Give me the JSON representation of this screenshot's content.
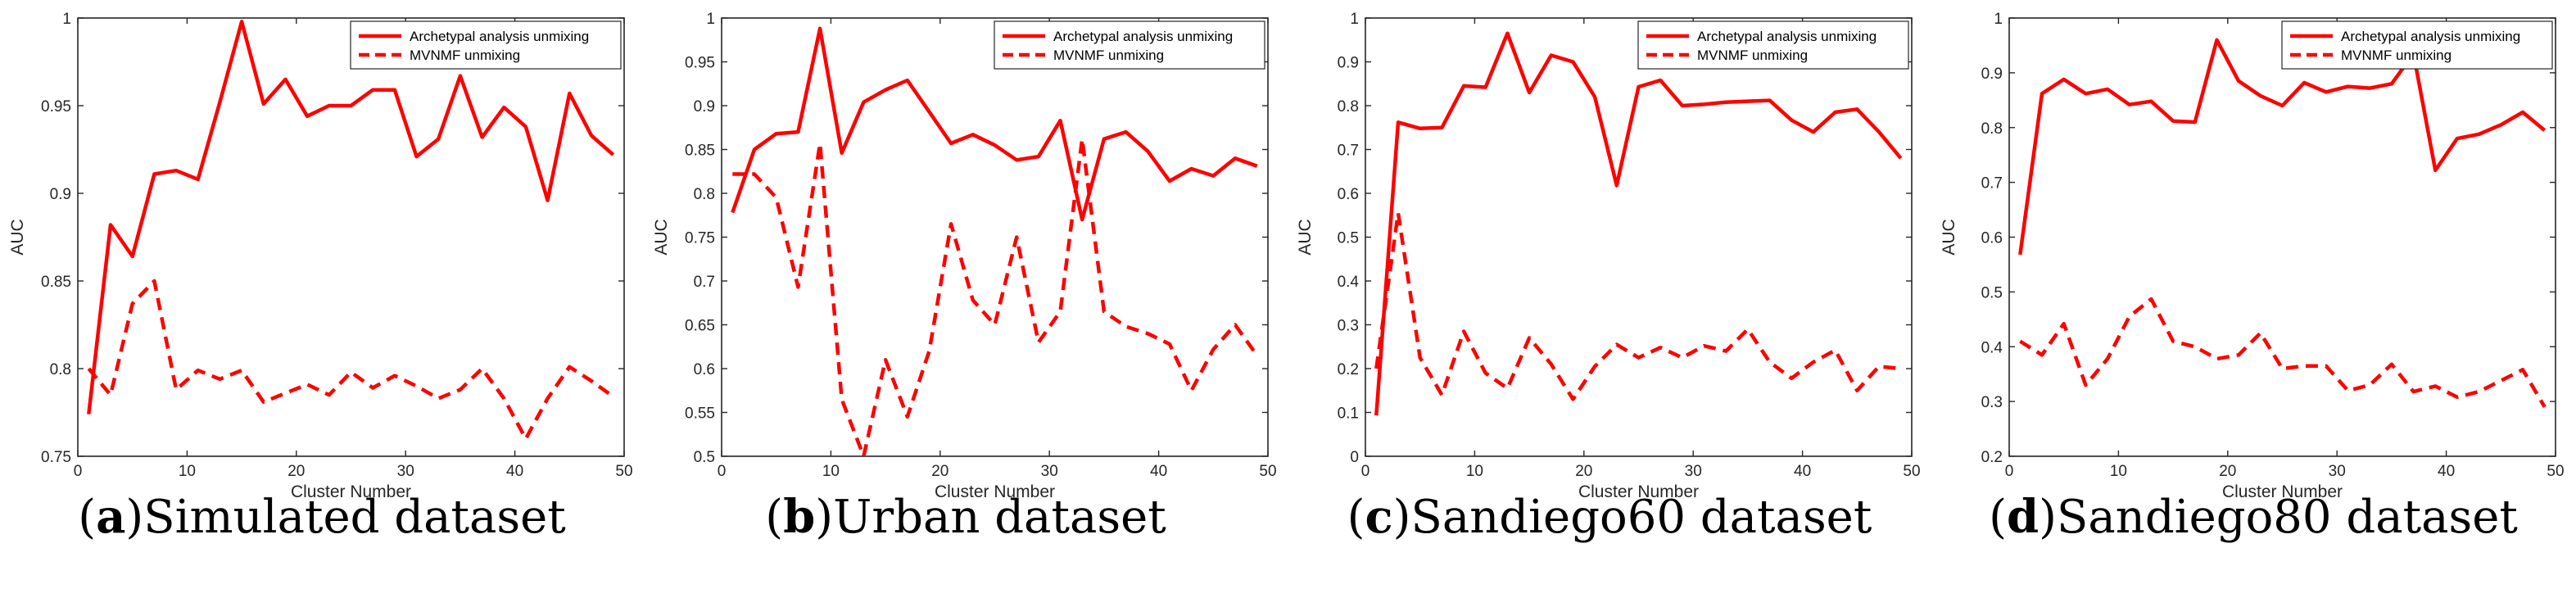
{
  "colors": {
    "series": "#ff0000",
    "axis": "#262626",
    "background": "#ffffff"
  },
  "panels": [
    {
      "caption_letter": "a",
      "caption_text": "Simulated dataset",
      "chart_data": {
        "type": "line",
        "title": "",
        "xlabel": "Cluster Number",
        "ylabel": "AUC",
        "xlim": [
          0,
          50
        ],
        "ylim": [
          0.75,
          1
        ],
        "xticks": [
          0,
          10,
          20,
          30,
          40,
          50
        ],
        "xtick_labels": [
          "0",
          "10",
          "20",
          "30",
          "40",
          "50"
        ],
        "yticks": [
          0.75,
          0.8,
          0.85,
          0.9,
          0.95,
          1
        ],
        "ytick_labels": [
          "0.75",
          "0.8",
          "0.85",
          "0.9",
          "0.95",
          "1"
        ],
        "legend_position": "top-right",
        "x": [
          1,
          3,
          5,
          7,
          9,
          11,
          13,
          15,
          17,
          19,
          21,
          23,
          25,
          27,
          29,
          31,
          33,
          35,
          37,
          39,
          41,
          43,
          45,
          47,
          49
        ],
        "series": [
          {
            "name": "Archetypal analysis unmixing",
            "style": "solid",
            "values": [
              0.774,
              0.882,
              0.864,
              0.911,
              0.913,
              0.908,
              0.952,
              0.998,
              0.951,
              0.965,
              0.944,
              0.95,
              0.95,
              0.959,
              0.959,
              0.921,
              0.931,
              0.967,
              0.932,
              0.949,
              0.938,
              0.896,
              0.957,
              0.933,
              0.922
            ]
          },
          {
            "name": "MVNMF unmixing",
            "style": "dashed",
            "values": [
              0.8,
              0.785,
              0.837,
              0.85,
              0.788,
              0.799,
              0.794,
              0.799,
              0.781,
              0.786,
              0.791,
              0.785,
              0.798,
              0.789,
              0.796,
              0.79,
              0.783,
              0.788,
              0.8,
              0.783,
              0.76,
              0.783,
              0.801,
              0.793,
              0.784
            ]
          }
        ]
      }
    },
    {
      "caption_letter": "b",
      "caption_text": "Urban dataset",
      "chart_data": {
        "type": "line",
        "title": "",
        "xlabel": "Cluster Number",
        "ylabel": "AUC",
        "xlim": [
          0,
          50
        ],
        "ylim": [
          0.5,
          1
        ],
        "xticks": [
          0,
          10,
          20,
          30,
          40,
          50
        ],
        "xtick_labels": [
          "0",
          "10",
          "20",
          "30",
          "40",
          "50"
        ],
        "yticks": [
          0.5,
          0.55,
          0.6,
          0.65,
          0.7,
          0.75,
          0.8,
          0.85,
          0.9,
          0.95,
          1
        ],
        "ytick_labels": [
          "0.5",
          "0.55",
          "0.6",
          "0.65",
          "0.7",
          "0.75",
          "0.8",
          "0.85",
          "0.9",
          "0.95",
          "1"
        ],
        "legend_position": "top-right",
        "x": [
          1,
          3,
          5,
          7,
          9,
          11,
          13,
          15,
          17,
          19,
          21,
          23,
          25,
          27,
          29,
          31,
          33,
          35,
          37,
          39,
          41,
          43,
          45,
          47,
          49
        ],
        "series": [
          {
            "name": "Archetypal analysis unmixing",
            "style": "solid",
            "values": [
              0.778,
              0.85,
              0.868,
              0.87,
              0.988,
              0.846,
              0.904,
              0.918,
              0.929,
              0.893,
              0.857,
              0.867,
              0.855,
              0.838,
              0.842,
              0.883,
              0.77,
              0.862,
              0.87,
              0.848,
              0.814,
              0.828,
              0.82,
              0.84,
              0.831
            ]
          },
          {
            "name": "MVNMF unmixing",
            "style": "dashed",
            "values": [
              0.822,
              0.822,
              0.795,
              0.693,
              0.857,
              0.565,
              0.5,
              0.61,
              0.545,
              0.62,
              0.765,
              0.678,
              0.65,
              0.75,
              0.63,
              0.665,
              0.862,
              0.665,
              0.648,
              0.64,
              0.628,
              0.575,
              0.622,
              0.65,
              0.615
            ]
          }
        ]
      }
    },
    {
      "caption_letter": "c",
      "caption_text": "Sandiego60 dataset",
      "chart_data": {
        "type": "line",
        "title": "",
        "xlabel": "Cluster Number",
        "ylabel": "AUC",
        "xlim": [
          0,
          50
        ],
        "ylim": [
          0,
          1
        ],
        "xticks": [
          0,
          10,
          20,
          30,
          40,
          50
        ],
        "xtick_labels": [
          "0",
          "10",
          "20",
          "30",
          "40",
          "50"
        ],
        "yticks": [
          0,
          0.1,
          0.2,
          0.3,
          0.4,
          0.5,
          0.6,
          0.7,
          0.8,
          0.9,
          1
        ],
        "ytick_labels": [
          "0",
          "0.1",
          "0.2",
          "0.3",
          "0.4",
          "0.5",
          "0.6",
          "0.7",
          "0.8",
          "0.9",
          "1"
        ],
        "legend_position": "top-right",
        "x": [
          1,
          3,
          5,
          7,
          9,
          11,
          13,
          15,
          17,
          19,
          21,
          23,
          25,
          27,
          29,
          31,
          33,
          35,
          37,
          39,
          41,
          43,
          45,
          47,
          49
        ],
        "series": [
          {
            "name": "Archetypal analysis unmixing",
            "style": "solid",
            "values": [
              0.093,
              0.762,
              0.748,
              0.75,
              0.845,
              0.842,
              0.965,
              0.83,
              0.915,
              0.9,
              0.82,
              0.618,
              0.843,
              0.858,
              0.8,
              0.803,
              0.808,
              0.81,
              0.812,
              0.767,
              0.74,
              0.785,
              0.792,
              0.74,
              0.68
            ]
          },
          {
            "name": "MVNMF unmixing",
            "style": "dashed",
            "values": [
              0.2,
              0.555,
              0.225,
              0.14,
              0.285,
              0.19,
              0.155,
              0.27,
              0.21,
              0.13,
              0.205,
              0.255,
              0.225,
              0.248,
              0.225,
              0.252,
              0.24,
              0.29,
              0.215,
              0.178,
              0.215,
              0.242,
              0.15,
              0.205,
              0.2
            ]
          }
        ]
      }
    },
    {
      "caption_letter": "d",
      "caption_text": "Sandiego80 dataset",
      "chart_data": {
        "type": "line",
        "title": "",
        "xlabel": "Cluster Number",
        "ylabel": "AUC",
        "xlim": [
          0,
          50
        ],
        "ylim": [
          0.2,
          1
        ],
        "xticks": [
          0,
          10,
          20,
          30,
          40,
          50
        ],
        "xtick_labels": [
          "0",
          "10",
          "20",
          "30",
          "40",
          "50"
        ],
        "yticks": [
          0.2,
          0.3,
          0.4,
          0.5,
          0.6,
          0.7,
          0.8,
          0.9,
          1
        ],
        "ytick_labels": [
          "0.2",
          "0.3",
          "0.4",
          "0.5",
          "0.6",
          "0.7",
          "0.8",
          "0.9",
          "1"
        ],
        "legend_position": "top-right",
        "x": [
          1,
          3,
          5,
          7,
          9,
          11,
          13,
          15,
          17,
          19,
          21,
          23,
          25,
          27,
          29,
          31,
          33,
          35,
          37,
          39,
          41,
          43,
          45,
          47,
          49
        ],
        "series": [
          {
            "name": "Archetypal analysis unmixing",
            "style": "solid",
            "values": [
              0.568,
              0.862,
              0.888,
              0.862,
              0.87,
              0.842,
              0.848,
              0.812,
              0.81,
              0.96,
              0.885,
              0.858,
              0.84,
              0.882,
              0.865,
              0.875,
              0.872,
              0.88,
              0.935,
              0.722,
              0.78,
              0.788,
              0.805,
              0.828,
              0.795
            ]
          },
          {
            "name": "MVNMF unmixing",
            "style": "dashed",
            "values": [
              0.41,
              0.385,
              0.442,
              0.33,
              0.378,
              0.455,
              0.487,
              0.41,
              0.4,
              0.378,
              0.385,
              0.425,
              0.36,
              0.365,
              0.365,
              0.32,
              0.33,
              0.368,
              0.318,
              0.328,
              0.308,
              0.318,
              0.338,
              0.358,
              0.29
            ]
          }
        ]
      }
    }
  ]
}
